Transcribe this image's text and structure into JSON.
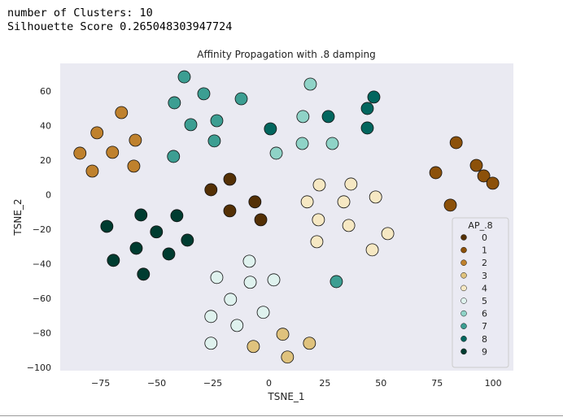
{
  "output_lines": [
    "number of Clusters: 10",
    "Silhouette Score 0.265048303947724"
  ],
  "chart_data": {
    "type": "scatter",
    "title": "Affinity Propagation with .8 damping",
    "x_label": "TSNE_1",
    "y_label": "TSNE_2",
    "legend_title": "AP_.8",
    "legend_position": "lower right",
    "grid": false,
    "xlim": [
      -93,
      109
    ],
    "ylim": [
      -102,
      76
    ],
    "xticks": [
      {
        "value": -75,
        "label": "−75"
      },
      {
        "value": -50,
        "label": "−50"
      },
      {
        "value": -25,
        "label": "−25"
      },
      0,
      25,
      50,
      75,
      100
    ],
    "yticks": [
      {
        "value": -100,
        "label": "−100"
      },
      {
        "value": -80,
        "label": "−80"
      },
      {
        "value": -60,
        "label": "−60"
      },
      {
        "value": -40,
        "label": "−40"
      },
      {
        "value": -20,
        "label": "−20"
      },
      0,
      20,
      40,
      60
    ],
    "series": [
      {
        "name": "0",
        "color": "#543005",
        "x": [
          -25.8,
          -17.4,
          -6.2,
          -17.4,
          -3.6
        ],
        "y": [
          2.8,
          8.9,
          -4.2,
          -9.4,
          -14.6
        ]
      },
      {
        "name": "1",
        "color": "#8c510a",
        "x": [
          83.5,
          74.4,
          92.5,
          95.8,
          99.8,
          80.9
        ],
        "y": [
          30.1,
          12.7,
          16.9,
          10.8,
          6.6,
          -6.1
        ]
      },
      {
        "name": "2",
        "color": "#bf812d",
        "x": [
          -65.7,
          -76.6,
          -59.5,
          -84.2,
          -69.7,
          -78.7,
          -60.2
        ],
        "y": [
          47.5,
          35.8,
          31.5,
          24.0,
          24.5,
          13.6,
          16.5
        ]
      },
      {
        "name": "3",
        "color": "#dfc27d",
        "x": [
          6.2,
          -6.9,
          8.3,
          18.1
        ],
        "y": [
          -80.9,
          -88.0,
          -94.1,
          -86.1
        ]
      },
      {
        "name": "4",
        "color": "#f6e8c3",
        "x": [
          22.5,
          36.6,
          17.1,
          33.4,
          47.6,
          22.1,
          35.6,
          53.0,
          21.4,
          46.1
        ],
        "y": [
          5.6,
          6.1,
          -4.2,
          -4.2,
          -1.4,
          -14.6,
          -17.9,
          -22.6,
          -27.3,
          -32.0
        ]
      },
      {
        "name": "5",
        "color": "#dff2ee",
        "x": [
          -8.7,
          -23.2,
          -8.3,
          2.2,
          -17.1,
          -2.5,
          -25.8,
          -14.2,
          -25.8
        ],
        "y": [
          -38.6,
          -48.0,
          -50.8,
          -49.4,
          -60.7,
          -68.2,
          -70.6,
          -75.8,
          -86.1
        ]
      },
      {
        "name": "6",
        "color": "#8fd3c7",
        "x": [
          18.5,
          15.2,
          3.3,
          14.9,
          28.3
        ],
        "y": [
          64.0,
          45.2,
          24.0,
          29.6,
          29.6
        ]
      },
      {
        "name": "7",
        "color": "#3c9e92",
        "x": [
          -37.7,
          -29.0,
          -42.1,
          -12.3,
          -34.8,
          -23.2,
          -24.3,
          -42.5,
          30.1
        ],
        "y": [
          68.2,
          58.4,
          53.2,
          55.5,
          40.5,
          42.8,
          31.1,
          22.1,
          -50.4
        ]
      },
      {
        "name": "8",
        "color": "#02665e",
        "x": [
          46.8,
          43.9,
          26.5,
          0.7,
          43.9
        ],
        "y": [
          56.5,
          49.9,
          45.2,
          38.1,
          38.6
        ]
      },
      {
        "name": "9",
        "color": "#003c30",
        "x": [
          -72.2,
          -57.0,
          -41.0,
          -50.1,
          -36.3,
          -59.1,
          -69.3,
          -44.6,
          -55.9
        ],
        "y": [
          -18.4,
          -11.8,
          -12.2,
          -21.6,
          -26.4,
          -31.1,
          -38.1,
          -34.4,
          -46.1
        ]
      }
    ]
  }
}
